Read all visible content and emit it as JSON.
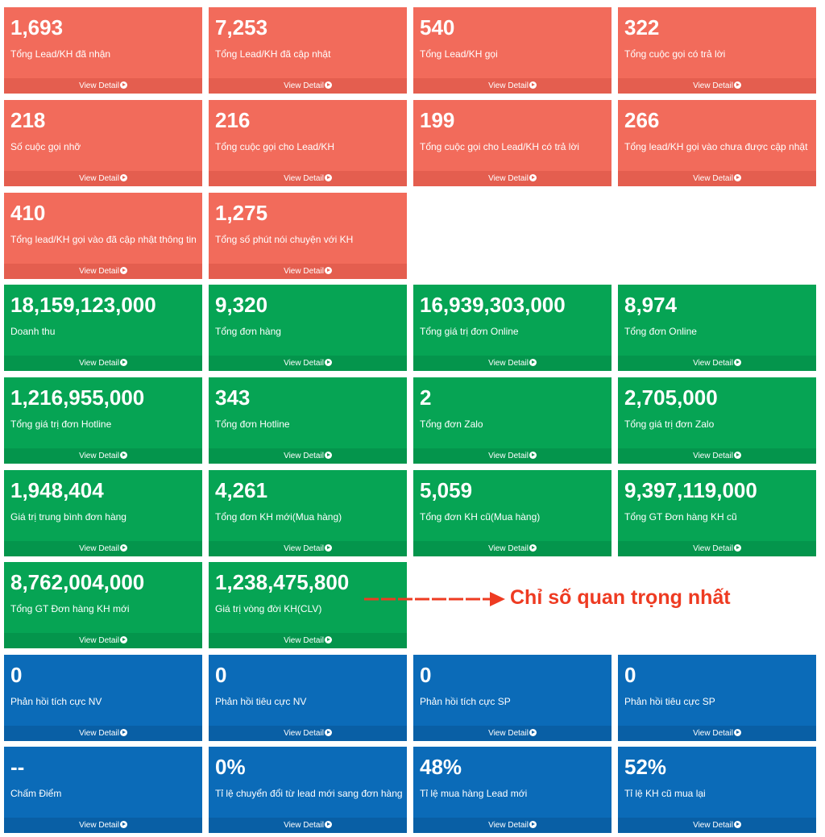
{
  "footer_label": "View Detail",
  "annotation": {
    "text": "Chỉ số quan trọng nhất",
    "color": "#ee3b22"
  },
  "colors": {
    "red": "#f26b5b",
    "green": "#06a454",
    "blue": "#0b6bb8"
  },
  "cards": [
    {
      "value": "1,693",
      "label": "Tổng Lead/KH đã nhận",
      "color": "red"
    },
    {
      "value": "7,253",
      "label": "Tổng Lead/KH đã cập nhật",
      "color": "red"
    },
    {
      "value": "540",
      "label": "Tổng Lead/KH gọi",
      "color": "red"
    },
    {
      "value": "322",
      "label": "Tổng cuộc gọi có trả lời",
      "color": "red"
    },
    {
      "value": "218",
      "label": "Số cuộc gọi nhỡ",
      "color": "red"
    },
    {
      "value": "216",
      "label": "Tổng cuộc gọi cho Lead/KH",
      "color": "red"
    },
    {
      "value": "199",
      "label": "Tổng cuộc gọi cho Lead/KH có trả lời",
      "color": "red"
    },
    {
      "value": "266",
      "label": "Tổng lead/KH gọi vào chưa được cập nhật",
      "color": "red"
    },
    {
      "value": "410",
      "label": "Tổng lead/KH gọi vào đã cập nhật thông tin",
      "color": "red"
    },
    {
      "value": "1,275",
      "label": "Tổng số phút nói chuyện với KH",
      "color": "red"
    },
    {
      "value": "18,159,123,000",
      "label": "Doanh thu",
      "color": "green"
    },
    {
      "value": "9,320",
      "label": "Tổng đơn hàng",
      "color": "green"
    },
    {
      "value": "16,939,303,000",
      "label": "Tổng giá trị đơn Online",
      "color": "green"
    },
    {
      "value": "8,974",
      "label": "Tổng đơn Online",
      "color": "green"
    },
    {
      "value": "1,216,955,000",
      "label": "Tổng giá trị đơn Hotline",
      "color": "green"
    },
    {
      "value": "343",
      "label": "Tổng đơn Hotline",
      "color": "green"
    },
    {
      "value": "2",
      "label": "Tổng đơn Zalo",
      "color": "green"
    },
    {
      "value": "2,705,000",
      "label": "Tổng giá trị đơn Zalo",
      "color": "green"
    },
    {
      "value": "1,948,404",
      "label": "Giá trị trung bình đơn hàng",
      "color": "green"
    },
    {
      "value": "4,261",
      "label": "Tổng đơn KH mới(Mua hàng)",
      "color": "green"
    },
    {
      "value": "5,059",
      "label": "Tổng đơn KH cũ(Mua hàng)",
      "color": "green"
    },
    {
      "value": "9,397,119,000",
      "label": "Tổng GT Đơn hàng KH cũ",
      "color": "green"
    },
    {
      "value": "8,762,004,000",
      "label": "Tổng GT Đơn hàng KH mới",
      "color": "green"
    },
    {
      "value": "1,238,475,800",
      "label": "Giá trị vòng đời KH(CLV)",
      "color": "green"
    },
    {
      "value": "0",
      "label": "Phản hồi tích cực NV",
      "color": "blue"
    },
    {
      "value": "0",
      "label": "Phản hồi tiêu cực NV",
      "color": "blue"
    },
    {
      "value": "0",
      "label": "Phản hồi tích cực SP",
      "color": "blue"
    },
    {
      "value": "0",
      "label": "Phản hồi tiêu cực SP",
      "color": "blue"
    },
    {
      "value": "--",
      "label": "Chấm Điểm",
      "color": "blue"
    },
    {
      "value": "0%",
      "label": "Tỉ lệ chuyển đổi từ lead mới sang đơn hàng",
      "color": "blue"
    },
    {
      "value": "48%",
      "label": "Tỉ lệ mua hàng Lead mới",
      "color": "blue"
    },
    {
      "value": "52%",
      "label": "Tỉ lệ KH cũ mua lại",
      "color": "blue"
    }
  ]
}
